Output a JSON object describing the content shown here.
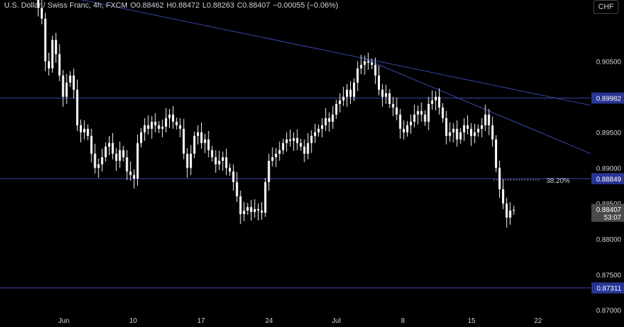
{
  "header": {
    "symbol_title": "U.S. Dollar / Swiss Franc, 4h, FXCM",
    "ohlc": {
      "o_key": "O",
      "o_val": "0.88462",
      "h_key": "H",
      "h_val": "0.88472",
      "l_key": "L",
      "l_val": "0.88263",
      "c_key": "C",
      "c_val": "0.88407",
      "change": "−0.00055 (−0.06%)"
    },
    "currency_button": "CHF"
  },
  "colors": {
    "background": "#000000",
    "candle": "#ffffff",
    "line": "#3949ab",
    "label_bg": "#283593",
    "price_label_bg": "#4a4a4a",
    "fib_line": "#9e9e9e"
  },
  "chart_data": {
    "type": "candlestick",
    "ylim": [
      0.86957,
      0.91362
    ],
    "y_ticks": [
      "0.90500",
      "0.89500",
      "0.89000",
      "0.88500",
      "0.88000",
      "0.87500",
      "0.87000"
    ],
    "x_ticks": [
      "Jun",
      "10",
      "17",
      "24",
      "Jul",
      "8",
      "15",
      "22"
    ],
    "horizontal_levels": [
      {
        "value": 0.89982,
        "label": "0.89982"
      },
      {
        "value": 0.88849,
        "label": "0.88849"
      },
      {
        "value": 0.87311,
        "label": "0.87311"
      }
    ],
    "trendlines": [
      {
        "from": [
          "May 29",
          0.915
        ],
        "to": [
          "Jul 23",
          0.8988
        ]
      },
      {
        "from": [
          "Jul 3",
          0.9053
        ],
        "to": [
          "Jul 23",
          0.892
        ]
      }
    ],
    "fib_annotation": {
      "label": "38.20%",
      "value": 0.8883
    },
    "last_price": {
      "value": "0.88407",
      "countdown": "53:07"
    },
    "closes": [
      0.915,
      0.9125,
      0.911,
      0.905,
      0.904,
      0.908,
      0.906,
      0.903,
      0.9,
      0.902,
      0.903,
      0.901,
      0.896,
      0.895,
      0.8955,
      0.8945,
      0.892,
      0.89,
      0.8905,
      0.8915,
      0.893,
      0.8935,
      0.892,
      0.891,
      0.8925,
      0.8915,
      0.8895,
      0.889,
      0.8885,
      0.8935,
      0.895,
      0.896,
      0.8955,
      0.8965,
      0.896,
      0.8955,
      0.8958,
      0.897,
      0.8975,
      0.8965,
      0.896,
      0.8955,
      0.892,
      0.89,
      0.892,
      0.8945,
      0.895,
      0.8935,
      0.894,
      0.8925,
      0.8915,
      0.8905,
      0.891,
      0.8915,
      0.89,
      0.8895,
      0.888,
      0.886,
      0.8835,
      0.884,
      0.8845,
      0.8838,
      0.8842,
      0.884,
      0.8837,
      0.888,
      0.891,
      0.8915,
      0.892,
      0.8925,
      0.8935,
      0.894,
      0.8938,
      0.8942,
      0.8935,
      0.893,
      0.892,
      0.8935,
      0.8945,
      0.895,
      0.8955,
      0.896,
      0.897,
      0.8965,
      0.8975,
      0.899,
      0.8995,
      0.9,
      0.901,
      0.9,
      0.902,
      0.904,
      0.9045,
      0.905,
      0.9048,
      0.9045,
      0.903,
      0.901,
      0.9,
      0.9005,
      0.899,
      0.8985,
      0.8975,
      0.8955,
      0.895,
      0.896,
      0.8965,
      0.8975,
      0.898,
      0.8975,
      0.8965,
      0.899,
      0.8995,
      0.9,
      0.8985,
      0.897,
      0.8945,
      0.895,
      0.8955,
      0.894,
      0.895,
      0.896,
      0.8955,
      0.8945,
      0.895,
      0.8955,
      0.896,
      0.8975,
      0.896,
      0.894,
      0.89,
      0.887,
      0.885,
      0.883,
      0.884,
      0.8841
    ]
  }
}
